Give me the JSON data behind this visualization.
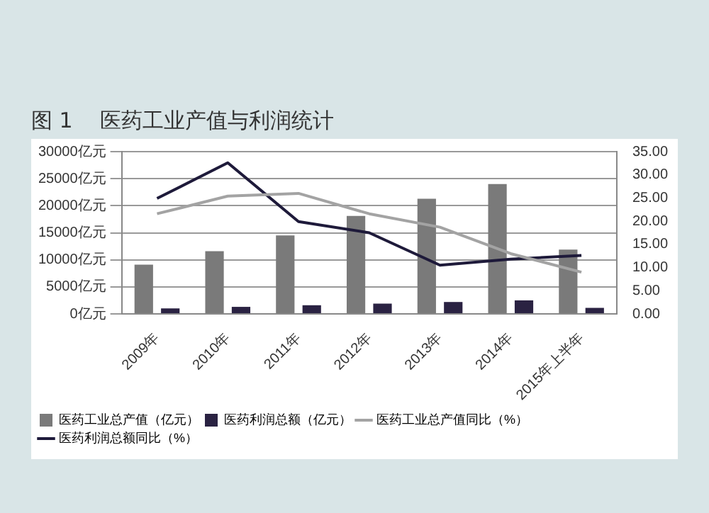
{
  "chart_data": {
    "type": "bar",
    "title": "图 1    医药工业产值与利润统计",
    "categories": [
      "2009年",
      "2010年",
      "2011年",
      "2012年",
      "2013年",
      "2014年",
      "2015年上半年"
    ],
    "series": [
      {
        "name": "医药工业总产值（亿元）",
        "color": "#7a7a7a",
        "values": [
          9100,
          11600,
          14500,
          18100,
          21300,
          24000,
          11900
        ]
      },
      {
        "name": "医药利润总额（亿元）",
        "color": "#2a2242",
        "values": [
          1000,
          1300,
          1600,
          1900,
          2200,
          2500,
          1100
        ]
      },
      {
        "name": "医药工业总产值同比（%）",
        "type": "line",
        "axis": "y2",
        "color": "#a3a3a3",
        "values": [
          21.6,
          25.4,
          26,
          21.6,
          18.7,
          13,
          9
        ]
      },
      {
        "name": "医药利润总额同比（%）",
        "type": "line",
        "axis": "y2",
        "color": "#1e1a3a",
        "values": [
          24.9,
          32.6,
          19.9,
          17.5,
          10.5,
          11.8,
          12.6
        ]
      }
    ],
    "ylim": [
      0,
      30000
    ],
    "yticks": [
      {
        "value": 0,
        "label": "0亿元"
      },
      {
        "value": 5000,
        "label": "5000亿元"
      },
      {
        "value": 10000,
        "label": "10000亿元"
      },
      {
        "value": 15000,
        "label": "15000亿元"
      },
      {
        "value": 20000,
        "label": "20000亿元"
      },
      {
        "value": 25000,
        "label": "25000亿元"
      },
      {
        "value": 30000,
        "label": "30000亿元"
      }
    ],
    "y2lim": [
      0,
      35
    ],
    "y2ticks": [
      {
        "value": 0,
        "label": "0.00"
      },
      {
        "value": 5,
        "label": "5.00"
      },
      {
        "value": 10,
        "label": "10.00"
      },
      {
        "value": 15,
        "label": "15.00"
      },
      {
        "value": 20,
        "label": "20.00"
      },
      {
        "value": 25,
        "label": "25.00"
      },
      {
        "value": 30,
        "label": "30.00"
      },
      {
        "value": 35,
        "label": "35.00"
      }
    ],
    "grid": "y",
    "legend": "bottom",
    "marker": "none"
  }
}
